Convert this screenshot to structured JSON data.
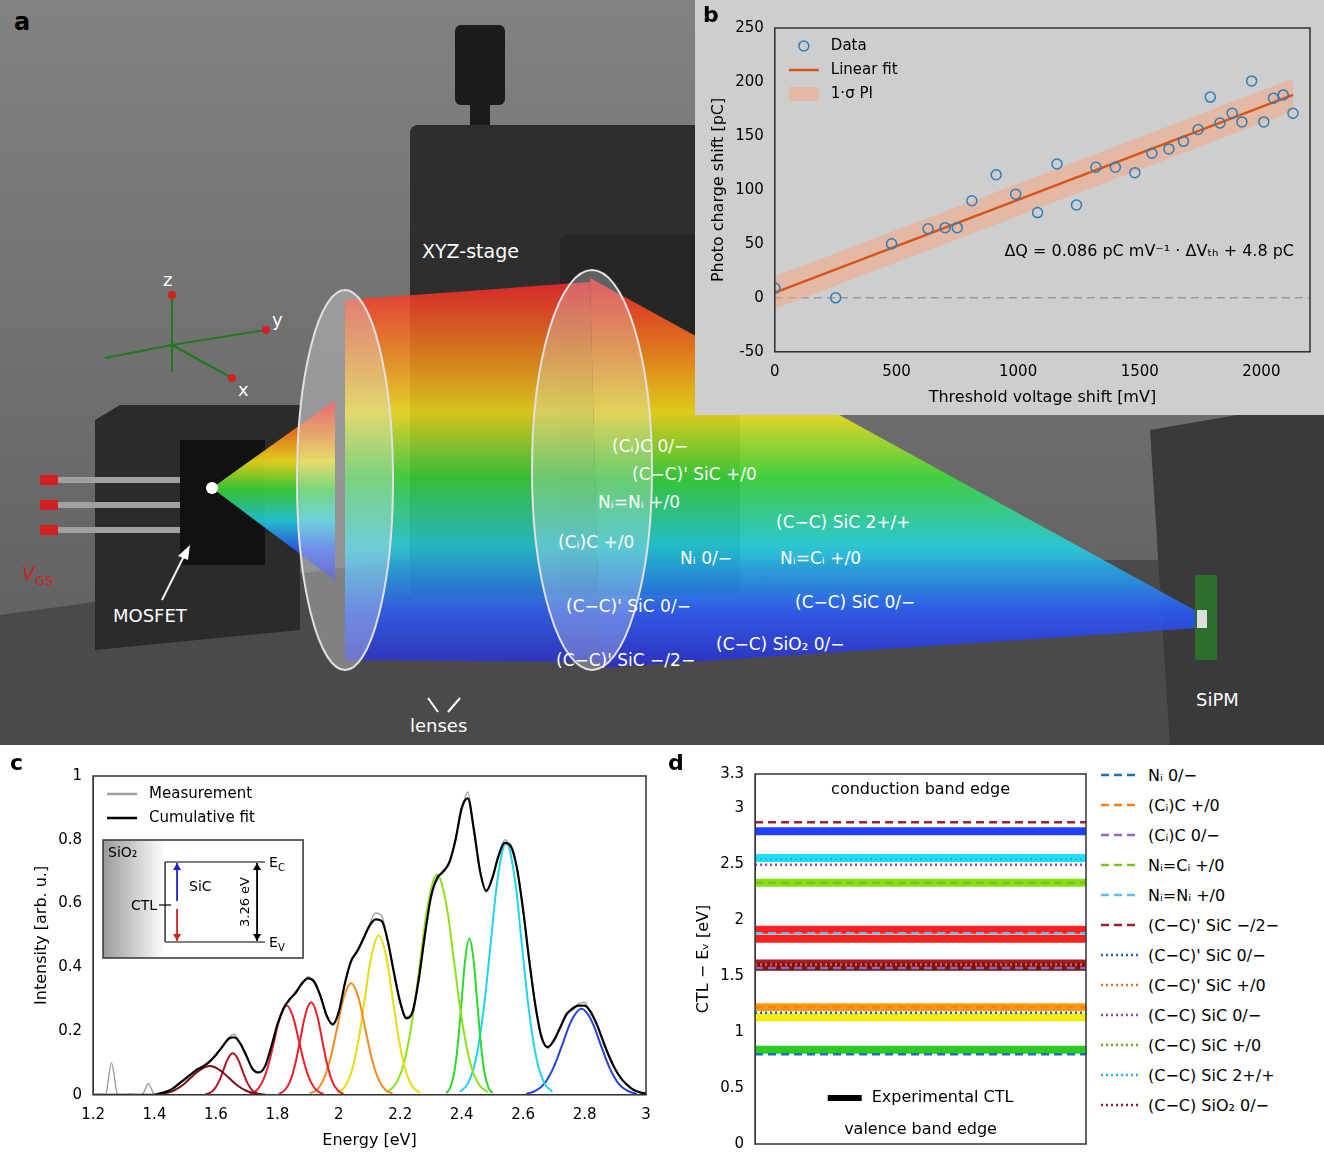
{
  "diagram": {
    "panel": "a",
    "stage_label": "XYZ-stage",
    "device_label": "MOSFET",
    "detector_label": "SiPM",
    "lens_label": "lenses",
    "gate_voltage": {
      "main": "V",
      "sub": "GS"
    },
    "axis_labels": {
      "x": "x",
      "y": "y",
      "z": "z"
    },
    "defect_labels": [
      "(Cᵢ)C 0/−",
      "(C−C)' SiC +/0",
      "Nᵢ=Nᵢ +/0",
      "(C−C) SiC 2+/+",
      "(Cᵢ)C +/0",
      "Nᵢ 0/−",
      "Nᵢ=Cᵢ +/0",
      "(C−C)' SiC 0/−",
      "(C−C) SiC 0/−",
      "(C−C)' SiC −/2−",
      "(C−C) SiO₂ 0/−"
    ]
  },
  "chart_data": [
    {
      "panel": "b",
      "type": "scatter",
      "x_label": "Threshold voltage shift [mV]",
      "y_label": "Photo charge shift [pC]",
      "xlim": [
        0,
        2200
      ],
      "xticks": [
        0,
        500,
        1000,
        1500,
        2000
      ],
      "ylim": [
        -50,
        250
      ],
      "yticks": [
        -50,
        0,
        50,
        100,
        150,
        200,
        250
      ],
      "grid": false,
      "legend": "upper left",
      "series": [
        {
          "name": "Data",
          "type": "scatter",
          "marker": "open circle",
          "color": "#2c7fb8",
          "x": [
            0,
            250,
            480,
            630,
            700,
            750,
            810,
            910,
            990,
            1080,
            1160,
            1240,
            1320,
            1400,
            1480,
            1550,
            1620,
            1680,
            1740,
            1790,
            1830,
            1880,
            1920,
            1960,
            2010,
            2050,
            2090,
            2130
          ],
          "values": [
            9,
            0,
            50,
            64,
            65,
            65,
            90,
            114,
            96,
            79,
            124,
            86,
            121,
            121,
            116,
            134,
            138,
            145,
            156,
            186,
            162,
            171,
            163,
            201,
            163,
            185,
            188,
            171
          ]
        },
        {
          "name": "Linear fit",
          "type": "line",
          "color": "#d9541a",
          "x": [
            0,
            2130
          ],
          "values": [
            4.8,
            188.0
          ]
        },
        {
          "name": "1·σ PI",
          "type": "band",
          "color": "#f4a582",
          "x": [
            0,
            2130
          ],
          "lower": [
            -10.2,
            173.0
          ],
          "upper": [
            19.8,
            203.0
          ]
        }
      ],
      "reference_lines": [
        {
          "y": 0,
          "line_style": "dashed",
          "color": "#9a9a9a"
        }
      ],
      "annotations": [
        "ΔQ = 0.086 pC mV⁻¹ · ΔVₜₕ + 4.8 pC"
      ]
    },
    {
      "panel": "c",
      "type": "line",
      "x_label": "Energy [eV]",
      "y_label": "Intensity [arb. u.]",
      "xlim": [
        1.2,
        3
      ],
      "xticks": [
        1.2,
        1.4,
        1.6,
        1.8,
        2,
        2.2,
        2.4,
        2.6,
        2.8,
        3
      ],
      "ylim": [
        0,
        1
      ],
      "yticks": [
        0,
        0.2,
        0.4,
        0.6,
        0.8,
        1
      ],
      "grid": false,
      "legend": "upper left",
      "x": [
        1.2,
        1.22,
        1.24,
        1.26,
        1.28,
        1.3,
        1.32,
        1.34,
        1.36,
        1.38,
        1.4,
        1.42,
        1.44,
        1.46,
        1.48,
        1.5,
        1.52,
        1.54,
        1.56,
        1.58,
        1.6,
        1.62,
        1.64,
        1.66,
        1.68,
        1.7,
        1.72,
        1.74,
        1.76,
        1.78,
        1.8,
        1.82,
        1.84,
        1.86,
        1.88,
        1.9,
        1.92,
        1.94,
        1.96,
        1.98,
        2,
        2.02,
        2.04,
        2.06,
        2.08,
        2.1,
        2.12,
        2.14,
        2.16,
        2.18,
        2.2,
        2.22,
        2.24,
        2.26,
        2.28,
        2.3,
        2.32,
        2.34,
        2.36,
        2.38,
        2.4,
        2.42,
        2.44,
        2.46,
        2.48,
        2.5,
        2.52,
        2.54,
        2.56,
        2.58,
        2.6,
        2.62,
        2.64,
        2.66,
        2.68,
        2.7,
        2.72,
        2.74,
        2.76,
        2.78,
        2.8,
        2.82,
        2.84,
        2.86,
        2.88,
        2.9,
        2.92,
        2.94,
        2.96,
        2.98,
        3
      ],
      "series": [
        {
          "name": "Measurement",
          "color": "#a0a0a0",
          "values": [
            0,
            0.002,
            0,
            0.1,
            0.001,
            0,
            0.002,
            0,
            0.001,
            0.035,
            0.002,
            0.006,
            0.012,
            0.018,
            0.037,
            0.048,
            0.068,
            0.078,
            0.093,
            0.102,
            0.128,
            0.147,
            0.178,
            0.19,
            0.158,
            0.123,
            0.078,
            0.072,
            0.088,
            0.155,
            0.215,
            0.275,
            0.296,
            0.326,
            0.345,
            0.37,
            0.35,
            0.314,
            0.246,
            0.224,
            0.257,
            0.355,
            0.415,
            0.455,
            0.486,
            0.535,
            0.57,
            0.56,
            0.475,
            0.385,
            0.286,
            0.245,
            0.255,
            0.365,
            0.495,
            0.63,
            0.672,
            0.705,
            0.725,
            0.805,
            0.89,
            0.95,
            0.825,
            0.705,
            0.635,
            0.685,
            0.745,
            0.8,
            0.775,
            0.715,
            0.575,
            0.425,
            0.275,
            0.185,
            0.145,
            0.175,
            0.205,
            0.255,
            0.265,
            0.285,
            0.29,
            0.255,
            0.225,
            0.165,
            0.125,
            0.078,
            0.052,
            0.028,
            0.017,
            0.006,
            0.003
          ]
        },
        {
          "name": "Cumulative fit",
          "color": "#000000",
          "values": [
            0,
            0,
            0,
            0,
            0,
            0,
            0,
            0,
            0,
            0,
            0,
            0.005,
            0.01,
            0.02,
            0.035,
            0.05,
            0.065,
            0.08,
            0.09,
            0.105,
            0.125,
            0.15,
            0.175,
            0.18,
            0.16,
            0.12,
            0.08,
            0.07,
            0.09,
            0.15,
            0.22,
            0.27,
            0.3,
            0.32,
            0.35,
            0.365,
            0.355,
            0.31,
            0.25,
            0.22,
            0.26,
            0.35,
            0.42,
            0.45,
            0.49,
            0.53,
            0.55,
            0.545,
            0.48,
            0.38,
            0.29,
            0.24,
            0.26,
            0.36,
            0.5,
            0.62,
            0.68,
            0.7,
            0.73,
            0.8,
            0.9,
            0.93,
            0.83,
            0.7,
            0.64,
            0.68,
            0.75,
            0.79,
            0.78,
            0.71,
            0.58,
            0.42,
            0.28,
            0.18,
            0.15,
            0.17,
            0.21,
            0.25,
            0.27,
            0.28,
            0.28,
            0.26,
            0.22,
            0.17,
            0.12,
            0.08,
            0.05,
            0.03,
            0.015,
            0.008,
            0.004
          ]
        }
      ],
      "components": [
        {
          "color": "#7a1010",
          "x": [
            1.4,
            1.43,
            1.46,
            1.49,
            1.52,
            1.55,
            1.58,
            1.61,
            1.64,
            1.67,
            1.7,
            1.73,
            1.76
          ],
          "values": [
            0.001,
            0.004,
            0.012,
            0.029,
            0.055,
            0.079,
            0.09,
            0.079,
            0.055,
            0.029,
            0.012,
            0.004,
            0.001
          ]
        },
        {
          "color": "#b0182a",
          "x": [
            1.565,
            1.58,
            1.595,
            1.61,
            1.625,
            1.64,
            1.655,
            1.67,
            1.685,
            1.7,
            1.715,
            1.73,
            1.745
          ],
          "values": [
            0.001,
            0.006,
            0.018,
            0.042,
            0.079,
            0.115,
            0.13,
            0.115,
            0.079,
            0.042,
            0.018,
            0.006,
            0.001
          ]
        },
        {
          "color": "#e8202a",
          "x": [
            1.71,
            1.73,
            1.75,
            1.77,
            1.79,
            1.81,
            1.83,
            1.85,
            1.87,
            1.89,
            1.91,
            1.93,
            1.95
          ],
          "values": [
            0.003,
            0.012,
            0.038,
            0.091,
            0.17,
            0.247,
            0.28,
            0.247,
            0.17,
            0.091,
            0.038,
            0.012,
            0.003
          ]
        },
        {
          "color": "#e8202a",
          "x": [
            1.805,
            1.8225,
            1.84,
            1.8575,
            1.875,
            1.8925,
            1.91,
            1.9275,
            1.945,
            1.9625,
            1.98,
            1.9975,
            2.015
          ],
          "values": [
            0.003,
            0.013,
            0.039,
            0.094,
            0.176,
            0.256,
            0.29,
            0.256,
            0.176,
            0.094,
            0.039,
            0.013,
            0.003
          ]
        },
        {
          "color": "#f28c1c",
          "x": [
            1.905,
            1.9275,
            1.95,
            1.9725,
            1.995,
            2.0175,
            2.04,
            2.0625,
            2.085,
            2.1075,
            2.13,
            2.1525,
            2.175
          ],
          "values": [
            0.004,
            0.015,
            0.047,
            0.114,
            0.212,
            0.309,
            0.35,
            0.309,
            0.212,
            0.114,
            0.047,
            0.015,
            0.004
          ]
        },
        {
          "color": "#e6dc10",
          "x": [
            1.995,
            2.0175,
            2.04,
            2.0625,
            2.085,
            2.1075,
            2.13,
            2.1525,
            2.175,
            2.1975,
            2.22,
            2.2425,
            2.265
          ],
          "values": [
            0.006,
            0.022,
            0.068,
            0.163,
            0.304,
            0.441,
            0.5,
            0.441,
            0.304,
            0.163,
            0.068,
            0.022,
            0.006
          ]
        },
        {
          "color": "#8ee01c",
          "x": [
            2.155,
            2.1825,
            2.21,
            2.2375,
            2.265,
            2.2925,
            2.32,
            2.3475,
            2.375,
            2.4025,
            2.43,
            2.4575,
            2.485
          ],
          "values": [
            0.008,
            0.03,
            0.093,
            0.224,
            0.419,
            0.609,
            0.69,
            0.609,
            0.419,
            0.224,
            0.093,
            0.03,
            0.008
          ]
        },
        {
          "color": "#2ed82e",
          "x": [
            2.35,
            2.3625,
            2.375,
            2.3875,
            2.4,
            2.4125,
            2.425,
            2.4375,
            2.45,
            2.4625,
            2.475,
            2.4875,
            2.5
          ],
          "values": [
            0.005,
            0.022,
            0.066,
            0.159,
            0.297,
            0.432,
            0.49,
            0.432,
            0.297,
            0.159,
            0.066,
            0.022,
            0.005
          ]
        },
        {
          "color": "#1ed4ee",
          "x": [
            2.395,
            2.42,
            2.445,
            2.47,
            2.495,
            2.52,
            2.545,
            2.57,
            2.595,
            2.62,
            2.645,
            2.67,
            2.695
          ],
          "values": [
            0.009,
            0.035,
            0.107,
            0.257,
            0.48,
            0.697,
            0.79,
            0.697,
            0.48,
            0.257,
            0.107,
            0.035,
            0.009
          ]
        },
        {
          "color": "#2244e0",
          "x": [
            2.61,
            2.64,
            2.67,
            2.7,
            2.73,
            2.76,
            2.79,
            2.82,
            2.85,
            2.88,
            2.91,
            2.94,
            2.97
          ],
          "values": [
            0.003,
            0.012,
            0.036,
            0.088,
            0.164,
            0.238,
            0.27,
            0.238,
            0.164,
            0.088,
            0.036,
            0.012,
            0.003
          ]
        }
      ],
      "inset": {
        "oxide": "SiO₂",
        "semiconductor": "SiC",
        "level": "CTL",
        "conduction": {
          "main": "E",
          "sub": "C"
        },
        "valence": {
          "main": "E",
          "sub": "V"
        },
        "gap": "3.26 eV"
      }
    },
    {
      "panel": "d",
      "type": "line",
      "y_label": "CTL − Eᵥ [eV]",
      "ylim": [
        0,
        3.3
      ],
      "yticks": [
        0,
        0.5,
        1,
        1.5,
        2,
        2.5,
        3,
        3.3
      ],
      "tick_labels": "y",
      "grid": false,
      "legend": "right",
      "series": [
        {
          "name": "Nᵢ 0/−",
          "color": "#1f6fb4",
          "line_style": "dashed",
          "values": [
            0.8
          ]
        },
        {
          "name": "(Cᵢ)C +/0",
          "color": "#ff7f0e",
          "line_style": "dashed",
          "values": [
            1.22
          ]
        },
        {
          "name": "(Cᵢ)C 0/−",
          "color": "#9467bd",
          "line_style": "dashed",
          "values": [
            1.57
          ]
        },
        {
          "name": "Nᵢ=Cᵢ +/0",
          "color": "#7cc21c",
          "line_style": "dashed",
          "values": [
            2.33
          ]
        },
        {
          "name": "Nᵢ=Nᵢ +/0",
          "color": "#5bc0eb",
          "line_style": "dashed",
          "values": [
            1.88
          ]
        },
        {
          "name": "(C−C)' SiC −/2−",
          "color": "#a02030",
          "line_style": "dashed",
          "values": [
            2.87
          ]
        },
        {
          "name": "(C−C)' SiC 0/−",
          "color": "#1f5fbf",
          "line_style": "dotted",
          "values": [
            1.17
          ]
        },
        {
          "name": "(C−C)' SiC +/0",
          "color": "#e0701a",
          "line_style": "dotted",
          "values": [
            1.6
          ]
        },
        {
          "name": "(C−C) SiC 0/−",
          "color": "#8e44ad",
          "line_style": "dotted",
          "values": [
            2.49
          ]
        },
        {
          "name": "(C−C) SiC +/0",
          "color": "#66aa22",
          "line_style": "dotted",
          "values": [
            0.84
          ]
        },
        {
          "name": "(C−C) SiC 2+/+",
          "color": "#20b8d8",
          "line_style": "dotted",
          "values": [
            2.54
          ]
        },
        {
          "name": "(C−C) SiO₂ 0/−",
          "color": "#8b1a3a",
          "line_style": "dotted",
          "values": [
            1.58
          ]
        }
      ],
      "experimental": {
        "name": "Experimental CTL",
        "color": "#000000",
        "values": [
          0.84,
          1.13,
          1.22,
          1.58,
          1.61,
          1.83,
          1.91,
          2.33,
          2.55,
          2.79
        ],
        "colors": [
          "#22d022",
          "#f0ec10",
          "#ff9a10",
          "#7a1010",
          "#b0182a",
          "#ff2020",
          "#ff2020",
          "#84e010",
          "#20e0ff",
          "#2040ff"
        ]
      },
      "annotations": [
        "conduction band edge",
        "valence band edge"
      ]
    }
  ]
}
